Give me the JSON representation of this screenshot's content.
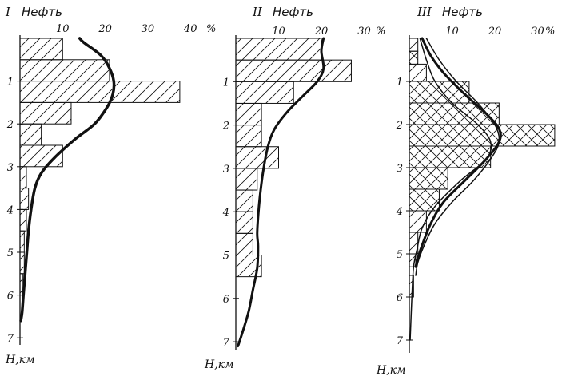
{
  "figure": {
    "ink_color": "#111111",
    "background": "#ffffff"
  },
  "chart_data": [
    {
      "type": "bar",
      "panel_label": "I",
      "title": "Нефть",
      "percent_unit": "%",
      "ylabel": "H,км",
      "x_ticks": [
        10,
        20,
        30,
        40
      ],
      "y_ticks": [
        1,
        2,
        3,
        4,
        5,
        6,
        7
      ],
      "xlim": [
        0,
        40
      ],
      "ylim": [
        0,
        7.6
      ],
      "orientation": "horizontal",
      "bins": [
        {
          "from": 0.0,
          "to": 0.5,
          "value": 10,
          "hatch": "single"
        },
        {
          "from": 0.5,
          "to": 1.0,
          "value": 21,
          "hatch": "single"
        },
        {
          "from": 1.0,
          "to": 1.5,
          "value": 37.5,
          "hatch": "single"
        },
        {
          "from": 1.5,
          "to": 2.0,
          "value": 12,
          "hatch": "single"
        },
        {
          "from": 2.0,
          "to": 2.5,
          "value": 5,
          "hatch": "single"
        },
        {
          "from": 2.5,
          "to": 3.0,
          "value": 10,
          "hatch": "single"
        },
        {
          "from": 3.0,
          "to": 3.5,
          "value": 1.5,
          "hatch": "single"
        },
        {
          "from": 3.5,
          "to": 4.0,
          "value": 2,
          "hatch": "single"
        },
        {
          "from": 4.0,
          "to": 4.5,
          "value": 1.5,
          "hatch": "single"
        },
        {
          "from": 4.5,
          "to": 5.0,
          "value": 1,
          "hatch": "single"
        },
        {
          "from": 5.0,
          "to": 5.5,
          "value": 1,
          "hatch": "single"
        },
        {
          "from": 5.5,
          "to": 6.0,
          "value": 0.7,
          "hatch": "single"
        }
      ],
      "curves": [
        {
          "width": 3.5,
          "points": [
            [
              14,
              0
            ],
            [
              15,
              0.1
            ],
            [
              19,
              0.4
            ],
            [
              21,
              0.7
            ],
            [
              22,
              1.0
            ],
            [
              21.8,
              1.3
            ],
            [
              20.5,
              1.6
            ],
            [
              17.5,
              2.0
            ],
            [
              13,
              2.35
            ],
            [
              8,
              2.8
            ],
            [
              5,
              3.15
            ],
            [
              3.5,
              3.5
            ],
            [
              2.6,
              4.0
            ],
            [
              2,
              4.5
            ],
            [
              1.6,
              5.0
            ],
            [
              1.2,
              5.5
            ],
            [
              0.8,
              6.0
            ],
            [
              0.5,
              6.4
            ],
            [
              0.2,
              6.6
            ]
          ]
        }
      ]
    },
    {
      "type": "bar",
      "panel_label": "II",
      "title": "Нефть",
      "percent_unit": "%",
      "ylabel": "H,км",
      "x_ticks": [
        10,
        20,
        30
      ],
      "y_ticks": [
        1,
        2,
        3,
        4,
        5,
        6,
        7
      ],
      "xlim": [
        0,
        30
      ],
      "ylim": [
        0,
        7.6
      ],
      "orientation": "horizontal",
      "bins": [
        {
          "from": 0.0,
          "to": 0.5,
          "value": 20,
          "hatch": "single"
        },
        {
          "from": 0.5,
          "to": 1.0,
          "value": 27,
          "hatch": "single"
        },
        {
          "from": 1.0,
          "to": 1.5,
          "value": 13.5,
          "hatch": "single"
        },
        {
          "from": 1.5,
          "to": 2.0,
          "value": 6,
          "hatch": "single"
        },
        {
          "from": 2.0,
          "to": 2.5,
          "value": 6,
          "hatch": "single"
        },
        {
          "from": 2.5,
          "to": 3.0,
          "value": 10,
          "hatch": "single"
        },
        {
          "from": 3.0,
          "to": 3.5,
          "value": 5,
          "hatch": "single"
        },
        {
          "from": 3.5,
          "to": 4.0,
          "value": 4,
          "hatch": "single"
        },
        {
          "from": 4.0,
          "to": 4.5,
          "value": 4,
          "hatch": "single"
        },
        {
          "from": 4.5,
          "to": 5.0,
          "value": 4,
          "hatch": "single"
        },
        {
          "from": 5.0,
          "to": 5.5,
          "value": 6,
          "hatch": "single"
        }
      ],
      "curves": [
        {
          "width": 3,
          "points": [
            [
              20.5,
              0
            ],
            [
              20,
              0.3
            ],
            [
              20.5,
              0.7
            ],
            [
              19,
              1.0
            ],
            [
              16,
              1.3
            ],
            [
              12,
              1.7
            ],
            [
              9,
              2.1
            ],
            [
              7.5,
              2.5
            ],
            [
              6.5,
              3.0
            ],
            [
              5.8,
              3.5
            ],
            [
              5.3,
              4.0
            ],
            [
              5,
              4.5
            ],
            [
              5.2,
              4.8
            ],
            [
              5,
              5.3
            ],
            [
              4,
              5.8
            ],
            [
              3,
              6.3
            ],
            [
              1.5,
              6.8
            ],
            [
              0.5,
              7.1
            ]
          ]
        }
      ]
    },
    {
      "type": "bar",
      "panel_label": "III",
      "title": "Нефть",
      "percent_unit": "%",
      "ylabel": "H,км",
      "x_ticks": [
        10,
        20,
        30
      ],
      "y_ticks": [
        1,
        2,
        3,
        4,
        5,
        6,
        7
      ],
      "xlim": [
        0,
        30
      ],
      "ylim": [
        0,
        7.6
      ],
      "orientation": "horizontal",
      "bins": [
        {
          "from": 0.0,
          "to": 0.3,
          "value": 2,
          "hatch": "single"
        },
        {
          "from": 0.3,
          "to": 0.6,
          "value": 2,
          "hatch": "cross"
        },
        {
          "from": 0.6,
          "to": 1.0,
          "value": 4,
          "hatch": "single"
        },
        {
          "from": 1.0,
          "to": 1.5,
          "value": 14,
          "hatch": "cross"
        },
        {
          "from": 1.5,
          "to": 2.0,
          "value": 21,
          "hatch": "cross"
        },
        {
          "from": 2.0,
          "to": 2.5,
          "value": 34,
          "hatch": "cross"
        },
        {
          "from": 2.5,
          "to": 3.0,
          "value": 19,
          "hatch": "cross"
        },
        {
          "from": 3.0,
          "to": 3.5,
          "value": 9,
          "hatch": "cross"
        },
        {
          "from": 3.5,
          "to": 4.0,
          "value": 7,
          "hatch": "cross"
        },
        {
          "from": 4.0,
          "to": 4.5,
          "value": 4,
          "hatch": "single"
        },
        {
          "from": 4.5,
          "to": 5.0,
          "value": 2,
          "hatch": "single"
        },
        {
          "from": 5.0,
          "to": 5.3,
          "value": 1.5,
          "hatch": "single"
        },
        {
          "from": 5.5,
          "to": 6.0,
          "value": 1,
          "hatch": "single"
        }
      ],
      "curves": [
        {
          "width": 3,
          "points": [
            [
              3,
              0
            ],
            [
              5,
              0.4
            ],
            [
              8,
              0.8
            ],
            [
              13,
              1.3
            ],
            [
              18,
              1.75
            ],
            [
              21,
              2.1
            ],
            [
              21,
              2.4
            ],
            [
              18,
              2.8
            ],
            [
              13,
              3.3
            ],
            [
              8,
              3.8
            ],
            [
              5,
              4.3
            ],
            [
              3,
              4.8
            ],
            [
              2,
              5.1
            ],
            [
              1.5,
              5.3
            ]
          ]
        },
        {
          "width": 1.5,
          "points": [
            [
              4,
              0
            ],
            [
              7,
              0.5
            ],
            [
              11,
              1.0
            ],
            [
              16,
              1.5
            ],
            [
              20,
              2.0
            ],
            [
              21,
              2.4
            ],
            [
              19,
              2.8
            ],
            [
              15,
              3.3
            ],
            [
              10,
              3.8
            ],
            [
              6,
              4.3
            ],
            [
              3.5,
              4.8
            ],
            [
              2,
              5.2
            ],
            [
              1.5,
              5.5
            ]
          ]
        },
        {
          "width": 1.5,
          "points": [
            [
              2.5,
              0
            ],
            [
              4,
              0.5
            ],
            [
              6,
              1.0
            ],
            [
              10,
              1.5
            ],
            [
              16,
              2.0
            ],
            [
              19,
              2.4
            ],
            [
              18,
              2.8
            ],
            [
              12,
              3.3
            ],
            [
              6,
              3.9
            ],
            [
              3,
              4.4
            ],
            [
              1.8,
              4.9
            ],
            [
              1,
              5.3
            ],
            [
              0.6,
              6
            ],
            [
              0.2,
              7
            ]
          ]
        }
      ]
    }
  ]
}
